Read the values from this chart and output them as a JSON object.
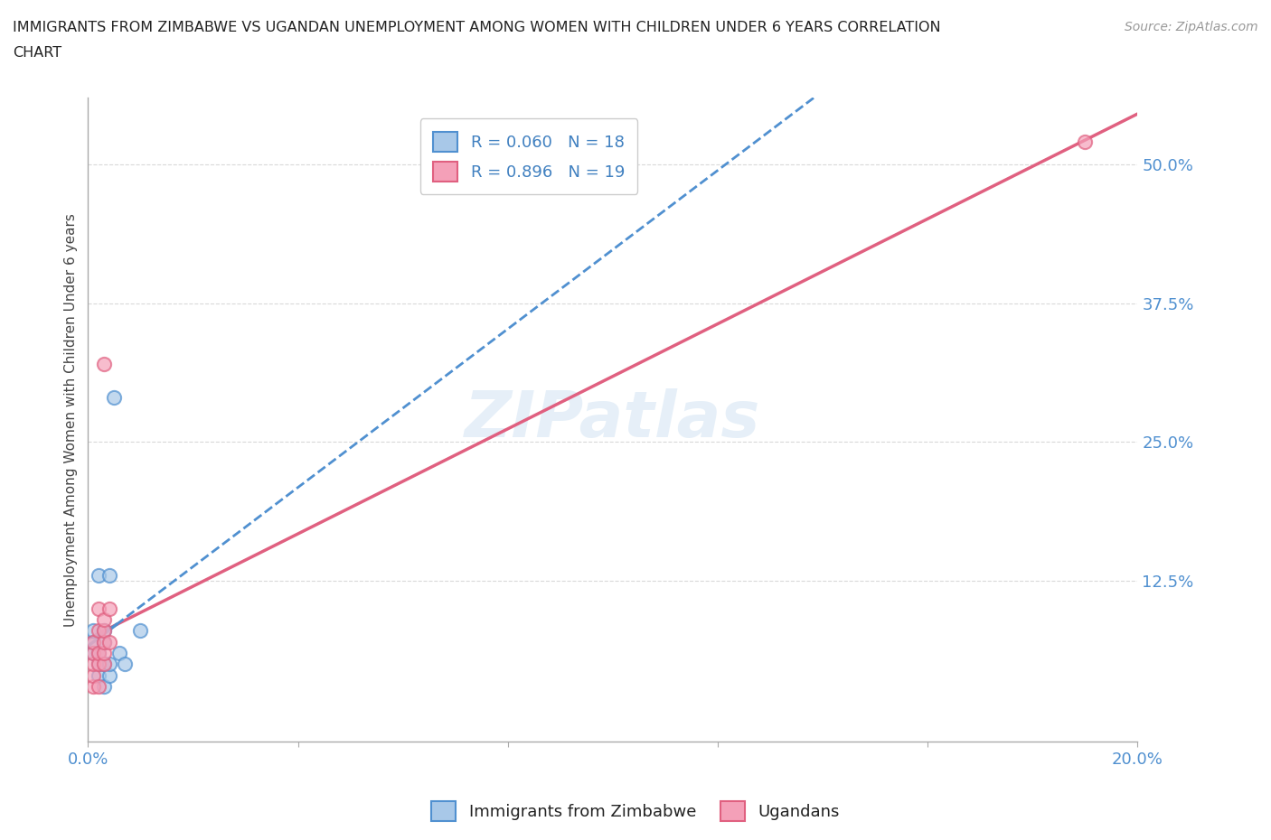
{
  "title_line1": "IMMIGRANTS FROM ZIMBABWE VS UGANDAN UNEMPLOYMENT AMONG WOMEN WITH CHILDREN UNDER 6 YEARS CORRELATION",
  "title_line2": "CHART",
  "source": "Source: ZipAtlas.com",
  "ylabel": "Unemployment Among Women with Children Under 6 years",
  "xlim": [
    0.0,
    0.2
  ],
  "ylim": [
    -0.02,
    0.56
  ],
  "xticks": [
    0.0,
    0.04,
    0.08,
    0.12,
    0.16,
    0.2
  ],
  "yticks": [
    0.125,
    0.25,
    0.375,
    0.5
  ],
  "ytick_labels": [
    "12.5%",
    "25.0%",
    "37.5%",
    "50.0%"
  ],
  "xtick_labels": [
    "0.0%",
    "",
    "",
    "",
    "",
    "20.0%"
  ],
  "r_zimbabwe": 0.06,
  "n_zimbabwe": 18,
  "r_ugandan": 0.896,
  "n_ugandan": 19,
  "color_zimbabwe": "#a8c8e8",
  "color_ugandan": "#f4a0b8",
  "trendline_color_zimbabwe": "#5090d0",
  "trendline_color_ugandan": "#e06080",
  "background_color": "#ffffff",
  "grid_color": "#d0d0d0",
  "watermark": "ZIPatlas",
  "zimbabwe_x": [
    0.001,
    0.001,
    0.001,
    0.002,
    0.002,
    0.002,
    0.002,
    0.003,
    0.003,
    0.003,
    0.003,
    0.004,
    0.004,
    0.004,
    0.005,
    0.006,
    0.007,
    0.01
  ],
  "zimbabwe_y": [
    0.06,
    0.07,
    0.08,
    0.04,
    0.05,
    0.06,
    0.13,
    0.03,
    0.05,
    0.07,
    0.08,
    0.04,
    0.05,
    0.13,
    0.29,
    0.06,
    0.05,
    0.08
  ],
  "ugandan_x": [
    0.001,
    0.001,
    0.001,
    0.001,
    0.001,
    0.002,
    0.002,
    0.002,
    0.002,
    0.002,
    0.003,
    0.003,
    0.003,
    0.003,
    0.003,
    0.003,
    0.004,
    0.004,
    0.19
  ],
  "ugandan_y": [
    0.03,
    0.04,
    0.05,
    0.06,
    0.07,
    0.03,
    0.05,
    0.06,
    0.08,
    0.1,
    0.05,
    0.06,
    0.07,
    0.08,
    0.09,
    0.32,
    0.07,
    0.1,
    0.52
  ],
  "marker_size": 120
}
